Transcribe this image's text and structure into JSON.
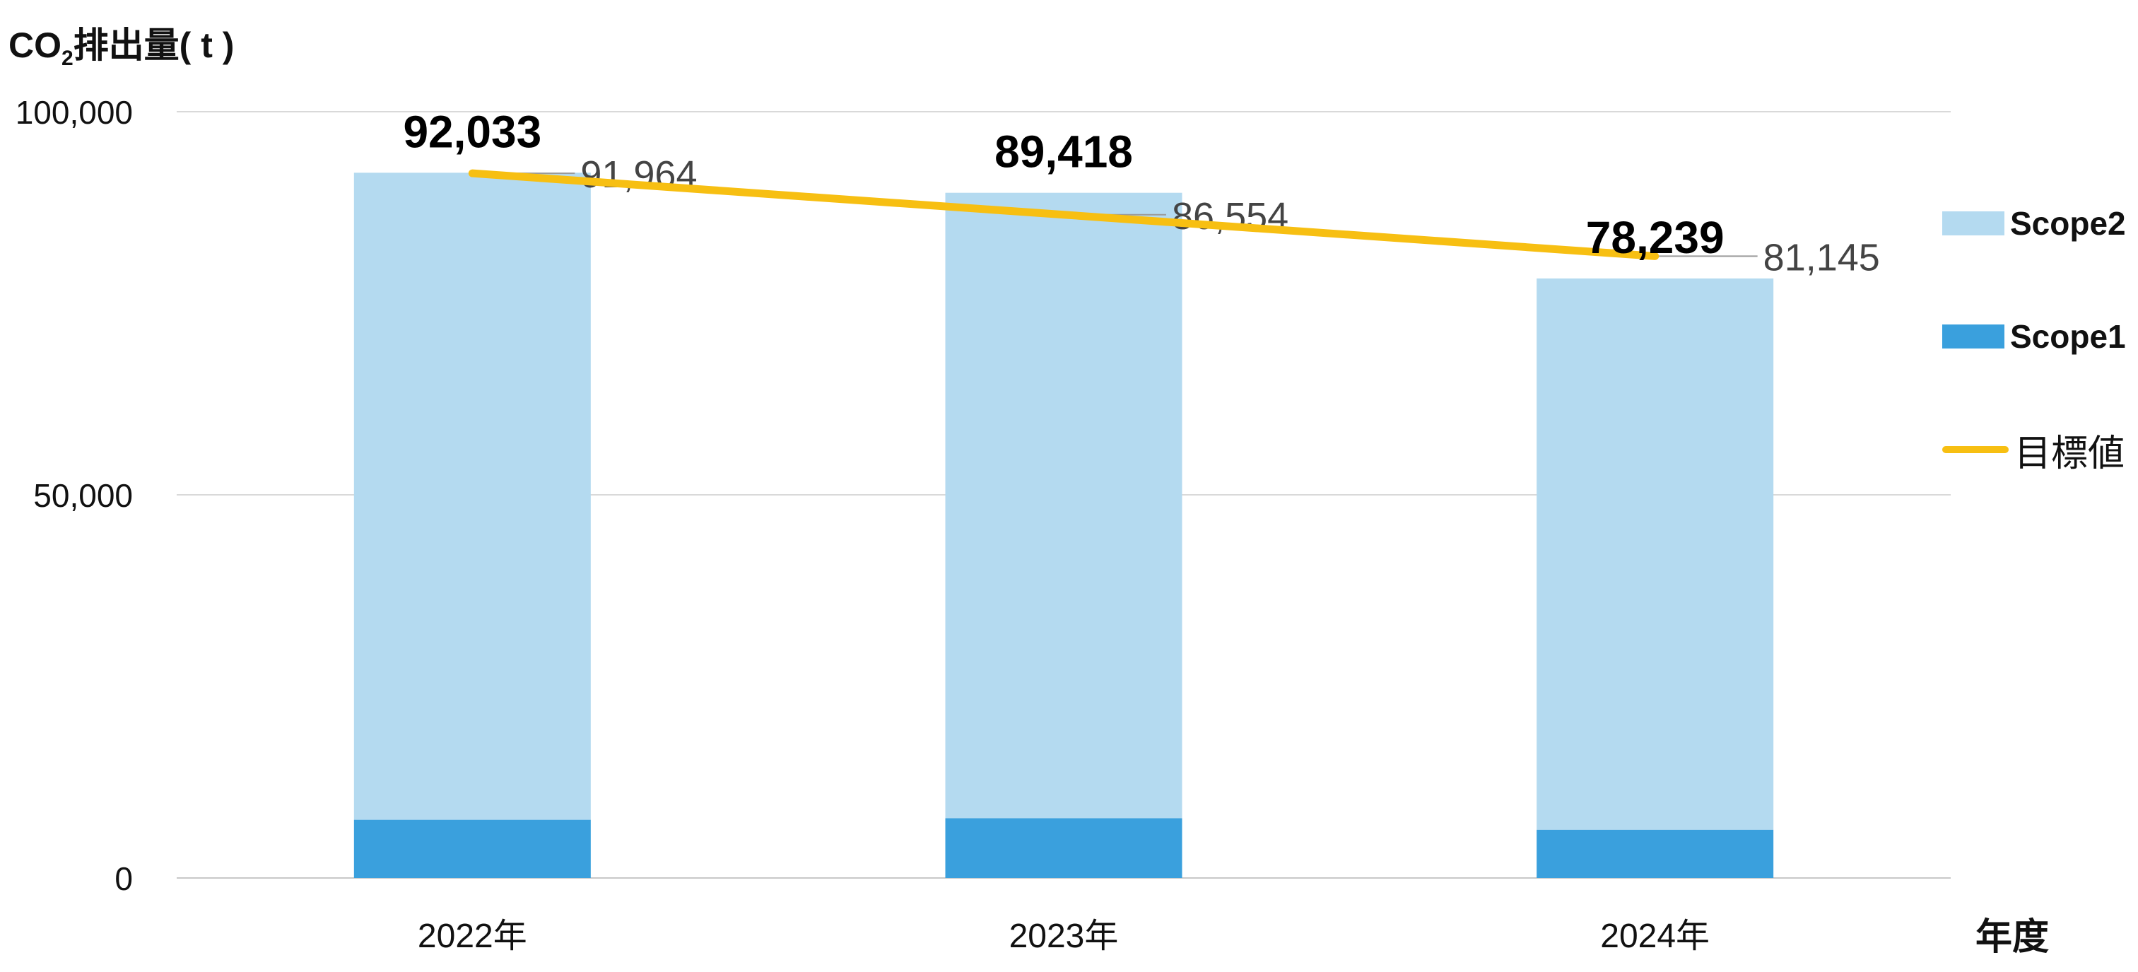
{
  "chart_data": {
    "type": "bar",
    "stacked": true,
    "ylabel": "CO₂排出量( t )",
    "ylabel_parts": {
      "pre": "CO",
      "sub": "2",
      "post": "排出量( t )"
    },
    "xlabel": "年度",
    "ylim": [
      0,
      100000
    ],
    "yticks": [
      {
        "value": 0,
        "label": "0"
      },
      {
        "value": 50000,
        "label": "50,000"
      },
      {
        "value": 100000,
        "label": "100,000"
      }
    ],
    "grid": true,
    "legend_position": "right",
    "categories": [
      "2022年",
      "2023年",
      "2024年"
    ],
    "series": [
      {
        "name": "Scope1",
        "type": "bar",
        "color": "#3aa0dd",
        "values": [
          7600,
          7800,
          6300
        ]
      },
      {
        "name": "Scope2",
        "type": "bar",
        "color": "#b4daf0",
        "values": [
          84433,
          81618,
          71939
        ]
      },
      {
        "name": "目標値",
        "type": "line",
        "color": "#f7bf12",
        "values": [
          91964,
          86554,
          81145
        ],
        "labels": [
          "91,964",
          "86,554",
          "81,145"
        ]
      }
    ],
    "totals": [
      92033,
      89418,
      78239
    ],
    "total_labels": [
      "92,033",
      "89,418",
      "78,239"
    ]
  }
}
